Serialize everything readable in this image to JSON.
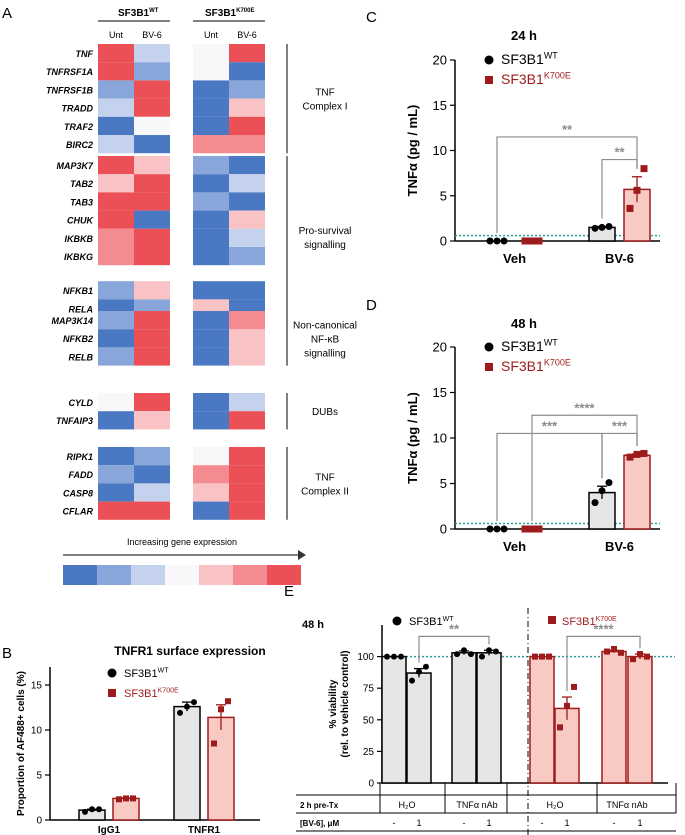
{
  "colors": {
    "wt": "#000000",
    "mut": "#9e1b1b",
    "bar_wt_fill": "#e6e6e6",
    "bar_mut_fill": "#f9c9c4",
    "dotted": "#2aa198",
    "sig": "#8c8c8c",
    "heat": [
      "#4a78c2",
      "#88a6d9",
      "#c4d2ee",
      "#f8f8fb",
      "#f9c2c4",
      "#f48b91",
      "#ec5057"
    ]
  },
  "panelA": {
    "label": "A",
    "wt_header": "SF3B1",
    "wt_sup": "WT",
    "mut_header": "SF3B1",
    "mut_sup": "K700E",
    "col_labels": [
      "Unt",
      "BV-6",
      "Unt",
      "BV-6"
    ],
    "groups": [
      {
        "name_lines": [
          "TNF",
          "Complex I"
        ],
        "genes": [
          {
            "name": "TNF",
            "vals": [
              6,
              2,
              3,
              6
            ]
          },
          {
            "name": "TNFRSF1A",
            "vals": [
              6,
              1,
              3,
              0
            ]
          },
          {
            "name": "TNFRSF1B",
            "vals": [
              1,
              6,
              0,
              1
            ]
          },
          {
            "name": "TRADD",
            "vals": [
              2,
              6,
              0,
              4
            ]
          },
          {
            "name": "TRAF2",
            "vals": [
              0,
              3,
              0,
              6
            ]
          },
          {
            "name": "BIRC2",
            "vals": [
              2,
              0,
              5,
              5
            ]
          }
        ]
      },
      {
        "name_lines": [
          "Pro-survival",
          "signalling"
        ],
        "genes": [
          {
            "name": "MAP3K7",
            "vals": [
              6,
              4,
              1,
              0
            ]
          },
          {
            "name": "TAB2",
            "vals": [
              4,
              6,
              0,
              2
            ]
          },
          {
            "name": "TAB3",
            "vals": [
              6,
              6,
              1,
              0
            ]
          },
          {
            "name": "CHUK",
            "vals": [
              6,
              0,
              0,
              4
            ]
          },
          {
            "name": "IKBKB",
            "vals": [
              5,
              6,
              0,
              2
            ]
          },
          {
            "name": "IKBKG",
            "vals": [
              5,
              6,
              0,
              1
            ]
          },
          {
            "name": "NFKB1",
            "vals": [
              1,
              4,
              0,
              0
            ]
          },
          {
            "name": "RELA",
            "vals": [
              0,
              1,
              4,
              0
            ]
          }
        ]
      },
      {
        "name_lines": [
          "Non-canonical",
          "NF-κB",
          "signalling"
        ],
        "genes": [
          {
            "name": "MAP3K14",
            "vals": [
              1,
              6,
              0,
              5
            ]
          },
          {
            "name": "NFKB2",
            "vals": [
              0,
              6,
              0,
              4
            ]
          },
          {
            "name": "RELB",
            "vals": [
              1,
              6,
              0,
              4
            ]
          }
        ]
      },
      {
        "name_lines": [
          "DUBs"
        ],
        "genes": [
          {
            "name": "CYLD",
            "vals": [
              3,
              6,
              0,
              2
            ]
          },
          {
            "name": "TNFAIP3",
            "vals": [
              0,
              4,
              0,
              6
            ]
          }
        ]
      },
      {
        "name_lines": [
          "TNF",
          "Complex II"
        ],
        "genes": [
          {
            "name": "RIPK1",
            "vals": [
              0,
              1,
              3,
              6
            ]
          },
          {
            "name": "FADD",
            "vals": [
              1,
              0,
              5,
              6
            ]
          },
          {
            "name": "CASP8",
            "vals": [
              0,
              2,
              4,
              6
            ]
          },
          {
            "name": "CFLAR",
            "vals": [
              6,
              6,
              0,
              6
            ]
          }
        ]
      }
    ],
    "scale_label": "Increasing gene expression"
  },
  "panelB": {
    "label": "B",
    "chart_data": {
      "type": "bar",
      "title": "TNFR1 surface expression",
      "ylabel": "Proportion of AF488+ cells (%)",
      "ylim": [
        0,
        17
      ],
      "yticks": [
        0,
        5,
        10,
        15
      ],
      "categories": [
        "IgG1",
        "TNFR1"
      ],
      "legend": [
        {
          "name": "SF3B1",
          "sup": "WT"
        },
        {
          "name": "SF3B1",
          "sup": "K700E"
        }
      ],
      "series": [
        {
          "name": "SF3B1 WT",
          "values": [
            1.1,
            12.6
          ],
          "points": [
            [
              0.9,
              1.2,
              1.2
            ],
            [
              11.9,
              12.6,
              13.1
            ]
          ],
          "sem": [
            0.1,
            0.5
          ]
        },
        {
          "name": "SF3B1 K700E",
          "values": [
            2.4,
            11.4
          ],
          "points": [
            [
              2.3,
              2.4,
              2.4
            ],
            [
              8.5,
              12.3,
              13.2
            ]
          ],
          "sem": [
            0.05,
            1.4
          ]
        }
      ]
    }
  },
  "panelC": {
    "label": "C",
    "chart_data": {
      "type": "bar",
      "title": "24 h",
      "ylabel": "TNFα (pg / mL)",
      "ylim": [
        0,
        20
      ],
      "yticks": [
        0,
        5,
        10,
        15,
        20
      ],
      "categories": [
        "Veh",
        "BV-6"
      ],
      "threshold": 0.6,
      "legend": [
        {
          "name": "SF3B1",
          "sup": "WT"
        },
        {
          "name": "SF3B1",
          "sup": "K700E"
        }
      ],
      "series": [
        {
          "name": "SF3B1 WT",
          "values": [
            0,
            1.5
          ],
          "points": [
            [
              0,
              0,
              0
            ],
            [
              1.4,
              1.5,
              1.6
            ]
          ],
          "sem": [
            0,
            0.1
          ]
        },
        {
          "name": "SF3B1 K700E",
          "values": [
            0,
            5.7
          ],
          "points": [
            [
              0,
              0,
              0
            ],
            [
              3.6,
              5.6,
              8.0
            ]
          ],
          "sem": [
            0,
            1.4
          ]
        }
      ],
      "significance": [
        {
          "text": "**",
          "from": [
            0,
            0
          ],
          "to": [
            1,
            1
          ],
          "y": 11.5
        },
        {
          "text": "**",
          "from": [
            1,
            0
          ],
          "to": [
            1,
            1
          ],
          "y": 9.0
        }
      ]
    }
  },
  "panelD": {
    "label": "D",
    "chart_data": {
      "type": "bar",
      "title": "48 h",
      "ylabel": "TNFα (pg / mL)",
      "ylim": [
        0,
        20
      ],
      "yticks": [
        0,
        5,
        10,
        15,
        20
      ],
      "categories": [
        "Veh",
        "BV-6"
      ],
      "threshold": 0.6,
      "legend": [
        {
          "name": "SF3B1",
          "sup": "WT"
        },
        {
          "name": "SF3B1",
          "sup": "K700E"
        }
      ],
      "series": [
        {
          "name": "SF3B1 WT",
          "values": [
            0,
            4.0
          ],
          "points": [
            [
              0,
              0,
              0
            ],
            [
              2.9,
              4.2,
              5.1
            ]
          ],
          "sem": [
            0,
            0.7
          ]
        },
        {
          "name": "SF3B1 K700E",
          "values": [
            0,
            8.1
          ],
          "points": [
            [
              0,
              0,
              0
            ],
            [
              7.9,
              8.2,
              8.3
            ]
          ],
          "sem": [
            0,
            0.15
          ]
        }
      ],
      "significance": [
        {
          "text": "****",
          "from": [
            0,
            1
          ],
          "to": [
            1,
            1
          ],
          "y": 12.5
        },
        {
          "text": "***",
          "from": [
            0,
            0
          ],
          "to": [
            1,
            0
          ],
          "y": 10.5
        },
        {
          "text": "***",
          "from": [
            1,
            0
          ],
          "to": [
            1,
            1
          ],
          "y": 10.5
        }
      ]
    }
  },
  "panelE": {
    "label": "E",
    "chart_data": {
      "type": "bar",
      "title": "48 h",
      "ylabel_lines": [
        "% viability",
        "(rel. to vehicle control)"
      ],
      "ylim": [
        0,
        125
      ],
      "yticks": [
        0,
        25,
        50,
        75,
        100
      ],
      "threshold": 100,
      "legend": [
        {
          "name": "SF3B1",
          "sup": "WT"
        },
        {
          "name": "SF3B1",
          "sup": "K700E"
        }
      ],
      "bars": [
        {
          "group": "SF3B1 WT",
          "pre": "H2O",
          "bv6": "-",
          "value": 100,
          "points": [
            100,
            100,
            100
          ],
          "sem": 0
        },
        {
          "group": "SF3B1 WT",
          "pre": "H2O",
          "bv6": "1",
          "value": 87,
          "points": [
            81,
            88,
            92
          ],
          "sem": 3.5
        },
        {
          "group": "SF3B1 WT",
          "pre": "TNFα nAb",
          "bv6": "-",
          "value": 103,
          "points": [
            102,
            105,
            102
          ],
          "sem": 1.5
        },
        {
          "group": "SF3B1 WT",
          "pre": "TNFα nAb",
          "bv6": "1",
          "value": 103,
          "points": [
            100,
            105,
            104
          ],
          "sem": 2
        },
        {
          "group": "SF3B1 K700E",
          "pre": "H2O",
          "bv6": "-",
          "value": 100,
          "points": [
            100,
            100,
            100
          ],
          "sem": 0
        },
        {
          "group": "SF3B1 K700E",
          "pre": "H2O",
          "bv6": "1",
          "value": 59,
          "points": [
            44,
            61,
            76
          ],
          "sem": 9
        },
        {
          "group": "SF3B1 K700E",
          "pre": "TNFα nAb",
          "bv6": "-",
          "value": 104,
          "points": [
            104,
            106,
            103
          ],
          "sem": 1
        },
        {
          "group": "SF3B1 K700E",
          "pre": "TNFα nAb",
          "bv6": "1",
          "value": 100,
          "points": [
            98,
            102,
            100
          ],
          "sem": 2
        }
      ],
      "significance": [
        {
          "text": "**",
          "from": 1,
          "to": 3,
          "y": 116
        },
        {
          "text": "****",
          "from": 5,
          "to": 7,
          "y": 116
        }
      ],
      "row_labels": [
        "2 h pre-Tx",
        "[BV-6], μM"
      ],
      "pre_labels": [
        "H₂O",
        "TNFα nAb",
        "H₂O",
        "TNFα nAb"
      ],
      "bv6_labels": [
        "-",
        "1",
        "-",
        "1",
        "-",
        "1",
        "-",
        "1"
      ]
    }
  }
}
